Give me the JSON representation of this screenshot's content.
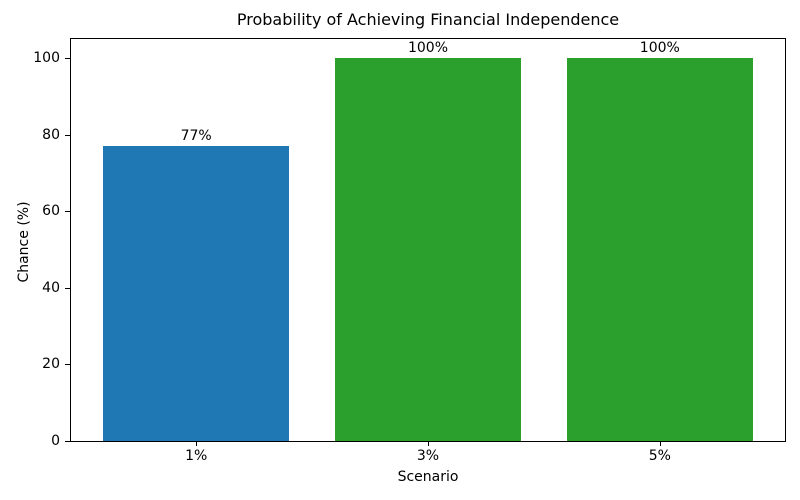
{
  "chart_data": {
    "type": "bar",
    "title": "Probability of Achieving Financial Independence",
    "xlabel": "Scenario",
    "ylabel": "Chance (%)",
    "categories": [
      "1%",
      "3%",
      "5%"
    ],
    "values": [
      77,
      100,
      100
    ],
    "bar_labels": [
      "77%",
      "100%",
      "100%"
    ],
    "bar_colors": [
      "#1f77b4",
      "#2ca02c",
      "#2ca02c"
    ],
    "yticks": [
      0,
      20,
      40,
      60,
      80,
      100
    ],
    "ylim": [
      0,
      105
    ],
    "xlim_units": [
      -0.54,
      2.54
    ],
    "bar_width_units": 0.8,
    "grid": false,
    "legend": "none",
    "spine_color": "#000000",
    "text_color": "#000000",
    "background_color": "#ffffff"
  }
}
